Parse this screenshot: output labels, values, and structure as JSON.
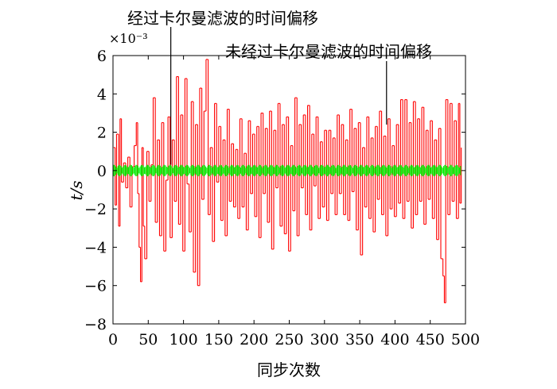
{
  "chart_data": {
    "type": "line",
    "title": "",
    "xlabel": "同步次数",
    "ylabel": "t/s",
    "y_exponent_label": "×10⁻³",
    "xlim": [
      0,
      500
    ],
    "ylim": [
      -8,
      6
    ],
    "xticks": [
      0,
      50,
      100,
      150,
      200,
      250,
      300,
      350,
      400,
      450,
      500
    ],
    "yticks": [
      -8,
      -6,
      -4,
      -2,
      0,
      2,
      4,
      6
    ],
    "xtick_labels": [
      "0",
      "50",
      "100",
      "150",
      "200",
      "250",
      "300",
      "350",
      "400",
      "450",
      "500"
    ],
    "ytick_labels": [
      "−8",
      "−6",
      "−4",
      "−2",
      "0",
      "2",
      "4",
      "6"
    ],
    "grid": false,
    "legend": "none",
    "annotations": [
      {
        "text": "经过卡尔曼滤波的时间偏移",
        "points_to": {
          "x": 82,
          "y": 0.3
        }
      },
      {
        "text": "未经过卡尔曼滤波的时间偏移",
        "points_to": {
          "x": 388,
          "y": 2.4
        }
      }
    ],
    "series": [
      {
        "color": "#ff0000",
        "points": [
          [
            1,
            1.2
          ],
          [
            3,
            -1.8
          ],
          [
            5,
            1.9
          ],
          [
            8,
            -2.9
          ],
          [
            10,
            2.7
          ],
          [
            12,
            -0.6
          ],
          [
            15,
            0.4
          ],
          [
            18,
            -0.9
          ],
          [
            21,
            0.7
          ],
          [
            24,
            -1.9
          ],
          [
            27,
            0.2
          ],
          [
            30,
            1.3
          ],
          [
            33,
            2.5
          ],
          [
            35,
            -1.2
          ],
          [
            37,
            -4.0
          ],
          [
            39,
            -5.8
          ],
          [
            41,
            1.2
          ],
          [
            43,
            -2.9
          ],
          [
            45,
            -4.6
          ],
          [
            48,
            1.0
          ],
          [
            51,
            -1.6
          ],
          [
            54,
            0.3
          ],
          [
            57,
            3.8
          ],
          [
            60,
            -2.7
          ],
          [
            63,
            1.6
          ],
          [
            66,
            -3.4
          ],
          [
            69,
            2.5
          ],
          [
            72,
            -4.2
          ],
          [
            75,
            -0.5
          ],
          [
            78,
            2.8
          ],
          [
            81,
            -3.5
          ],
          [
            84,
            1.6
          ],
          [
            87,
            -1.6
          ],
          [
            90,
            4.9
          ],
          [
            93,
            -2.8
          ],
          [
            96,
            2.9
          ],
          [
            99,
            -4.2
          ],
          [
            102,
            4.8
          ],
          [
            105,
            -0.7
          ],
          [
            108,
            -3.2
          ],
          [
            111,
            3.6
          ],
          [
            114,
            -5.3
          ],
          [
            117,
            2.4
          ],
          [
            120,
            -6.0
          ],
          [
            123,
            4.3
          ],
          [
            126,
            -1.5
          ],
          [
            129,
            3.1
          ],
          [
            132,
            5.8
          ],
          [
            135,
            -2.3
          ],
          [
            138,
            1.2
          ],
          [
            141,
            -3.7
          ],
          [
            144,
            3.5
          ],
          [
            147,
            -0.6
          ],
          [
            150,
            2.3
          ],
          [
            153,
            -2.6
          ],
          [
            156,
            1.6
          ],
          [
            159,
            -3.4
          ],
          [
            162,
            3.2
          ],
          [
            165,
            -1.6
          ],
          [
            168,
            1.4
          ],
          [
            171,
            -1.9
          ],
          [
            174,
            1.1
          ],
          [
            177,
            -2.5
          ],
          [
            180,
            2.7
          ],
          [
            183,
            -1.9
          ],
          [
            186,
            0.9
          ],
          [
            189,
            -3.1
          ],
          [
            192,
            2.6
          ],
          [
            195,
            -1.2
          ],
          [
            198,
            1.9
          ],
          [
            201,
            -2.4
          ],
          [
            204,
            2.3
          ],
          [
            207,
            -3.5
          ],
          [
            210,
            3.0
          ],
          [
            213,
            -1.2
          ],
          [
            216,
            2.2
          ],
          [
            219,
            -2.7
          ],
          [
            222,
            3.1
          ],
          [
            225,
            -4.1
          ],
          [
            228,
            2.1
          ],
          [
            231,
            -0.9
          ],
          [
            234,
            3.5
          ],
          [
            237,
            -2.9
          ],
          [
            240,
            2.4
          ],
          [
            243,
            -3.3
          ],
          [
            246,
            2.8
          ],
          [
            249,
            -4.2
          ],
          [
            252,
            1.3
          ],
          [
            255,
            -2.1
          ],
          [
            258,
            3.8
          ],
          [
            261,
            -3.4
          ],
          [
            264,
            2.4
          ],
          [
            267,
            -0.9
          ],
          [
            270,
            2.9
          ],
          [
            273,
            -2.3
          ],
          [
            276,
            3.4
          ],
          [
            279,
            -3.1
          ],
          [
            282,
            1.9
          ],
          [
            285,
            -0.8
          ],
          [
            288,
            2.8
          ],
          [
            291,
            -2.5
          ],
          [
            294,
            1.5
          ],
          [
            297,
            -1.9
          ],
          [
            300,
            2.1
          ],
          [
            303,
            -2.6
          ],
          [
            306,
            2.1
          ],
          [
            309,
            -1.2
          ],
          [
            312,
            1.7
          ],
          [
            315,
            -2.3
          ],
          [
            318,
            2.9
          ],
          [
            321,
            -1.2
          ],
          [
            324,
            2.4
          ],
          [
            327,
            -2.3
          ],
          [
            330,
            1.6
          ],
          [
            333,
            -2.6
          ],
          [
            336,
            3.2
          ],
          [
            339,
            -1.1
          ],
          [
            342,
            2.2
          ],
          [
            345,
            -3.1
          ],
          [
            348,
            2.5
          ],
          [
            351,
            -4.4
          ],
          [
            354,
            1.2
          ],
          [
            357,
            -1.9
          ],
          [
            360,
            2.8
          ],
          [
            363,
            -2.5
          ],
          [
            366,
            1.7
          ],
          [
            369,
            -3.2
          ],
          [
            372,
            2.3
          ],
          [
            375,
            -1.5
          ],
          [
            378,
            3.1
          ],
          [
            381,
            -2.3
          ],
          [
            384,
            1.8
          ],
          [
            387,
            -3.4
          ],
          [
            390,
            2.7
          ],
          [
            393,
            -2.0
          ],
          [
            396,
            1.3
          ],
          [
            399,
            -2.4
          ],
          [
            402,
            2.4
          ],
          [
            405,
            -1.7
          ],
          [
            408,
            3.7
          ],
          [
            411,
            -2.5
          ],
          [
            414,
            3.7
          ],
          [
            417,
            -1.6
          ],
          [
            420,
            2.5
          ],
          [
            423,
            -3.0
          ],
          [
            426,
            3.6
          ],
          [
            429,
            -2.3
          ],
          [
            432,
            2.7
          ],
          [
            435,
            -1.6
          ],
          [
            438,
            3.3
          ],
          [
            441,
            -2.8
          ],
          [
            444,
            2.1
          ],
          [
            447,
            -1.5
          ],
          [
            450,
            2.6
          ],
          [
            453,
            -2.5
          ],
          [
            456,
            1.6
          ],
          [
            459,
            -3.6
          ],
          [
            462,
            2.2
          ],
          [
            465,
            -4.6
          ],
          [
            468,
            -5.5
          ],
          [
            470,
            -6.9
          ],
          [
            472,
            3.7
          ],
          [
            475,
            -2.3
          ],
          [
            478,
            3.5
          ],
          [
            481,
            -1.6
          ],
          [
            484,
            2.6
          ],
          [
            487,
            -2.5
          ],
          [
            490,
            3.5
          ],
          [
            492,
            -1.7
          ],
          [
            494,
            1.2
          ]
        ]
      },
      {
        "color": "#00ee00",
        "x_start": 1,
        "x_end": 494,
        "y_min": -0.3,
        "y_max": 0.3
      }
    ]
  }
}
